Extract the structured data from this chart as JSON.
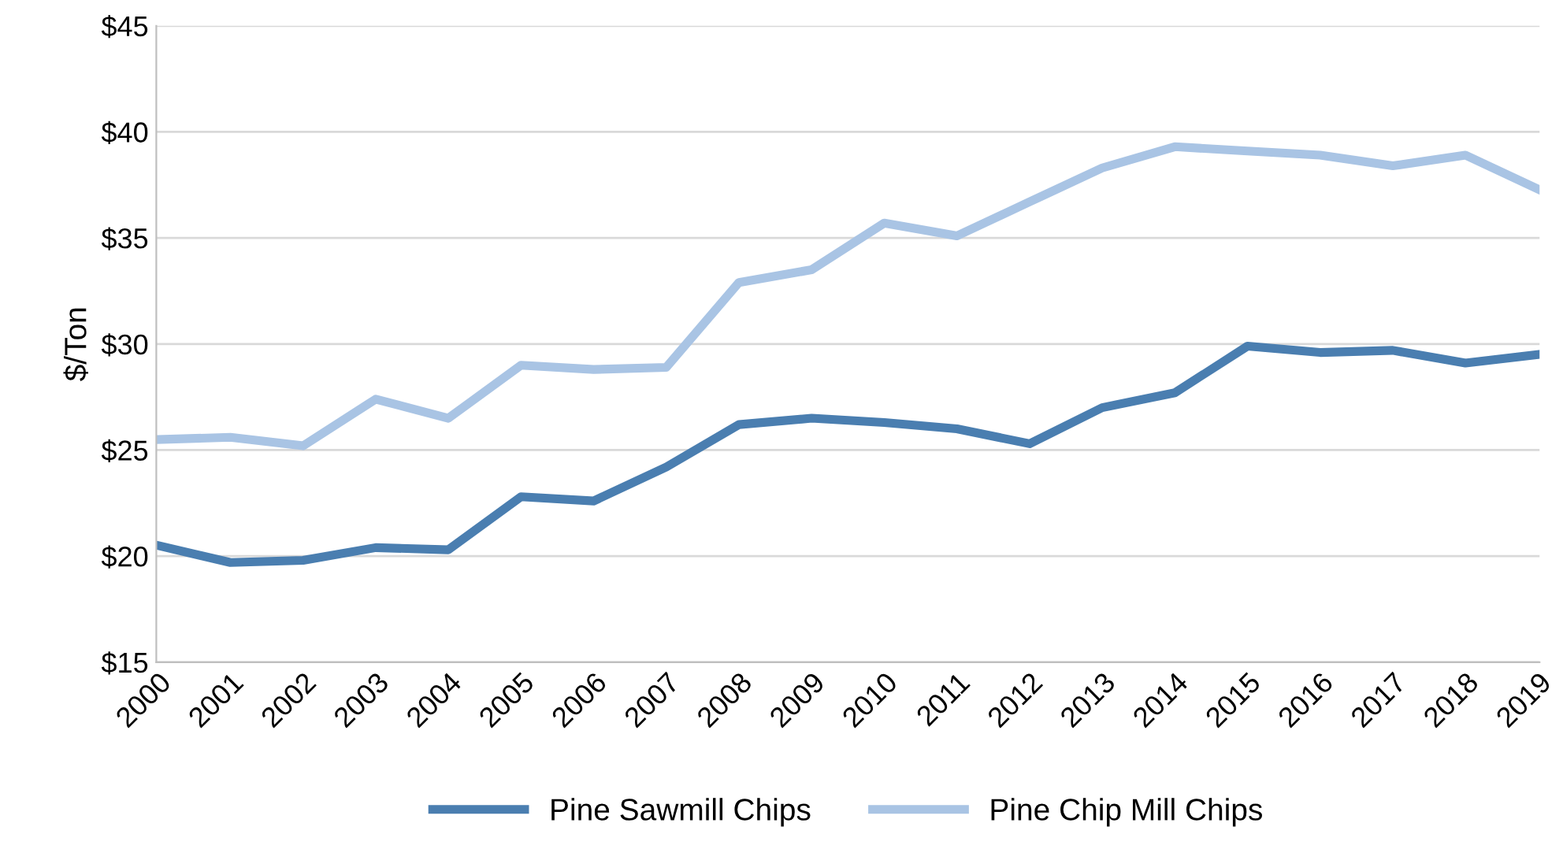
{
  "chart_data": {
    "type": "line",
    "ylabel": "$/Ton",
    "categories": [
      "2000",
      "2001",
      "2002",
      "2003",
      "2004",
      "2005",
      "2006",
      "2007",
      "2008",
      "2009",
      "2010",
      "2011",
      "2012",
      "2013",
      "2014",
      "2015",
      "2016",
      "2017",
      "2018",
      "2019"
    ],
    "series": [
      {
        "name": "Pine Sawmill Chips",
        "color": "#4a7eb0",
        "values": [
          20.5,
          19.7,
          19.8,
          20.4,
          20.3,
          22.8,
          22.6,
          24.2,
          26.2,
          26.5,
          26.3,
          26.0,
          25.3,
          27.0,
          27.7,
          29.9,
          29.6,
          29.7,
          29.1,
          29.5
        ]
      },
      {
        "name": "Pine Chip Mill Chips",
        "color": "#a9c4e4",
        "values": [
          25.5,
          25.6,
          25.2,
          27.4,
          26.5,
          29.0,
          28.8,
          28.9,
          32.9,
          33.5,
          35.7,
          35.1,
          36.7,
          38.3,
          39.3,
          39.1,
          38.9,
          38.4,
          38.9,
          37.3
        ]
      }
    ],
    "ylim": [
      15,
      45
    ],
    "yticks": [
      {
        "value": 15,
        "label": "$15"
      },
      {
        "value": 20,
        "label": "$20"
      },
      {
        "value": 25,
        "label": "$25"
      },
      {
        "value": 30,
        "label": "$30"
      },
      {
        "value": 35,
        "label": "$35"
      },
      {
        "value": 40,
        "label": "$40"
      },
      {
        "value": 45,
        "label": "$45"
      }
    ],
    "grid": "y",
    "legend": "bottom",
    "marker": "none",
    "line_style": "solid"
  }
}
